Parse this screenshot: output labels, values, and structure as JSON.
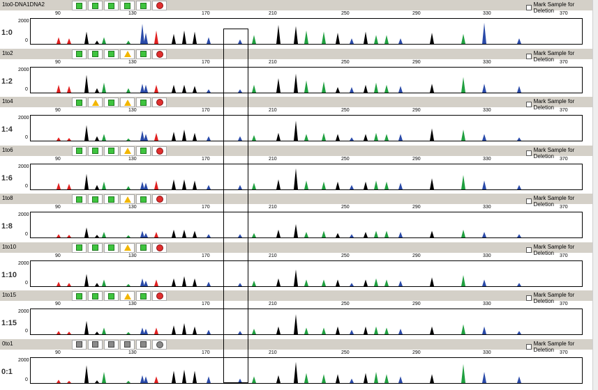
{
  "mark_label": "Mark Sample for Deletion",
  "axis": {
    "ticks": [
      "90",
      "130",
      "170",
      "210",
      "250",
      "290",
      "330",
      "370"
    ],
    "ymax": "2000",
    "ymin": "0"
  },
  "colors": {
    "header_bg": "#d4d0c8",
    "green": "#3fc43f",
    "yellow": "#f2b600",
    "red": "#e03030",
    "gray": "#8a8a8a",
    "blue": "#2a4aa8",
    "black": "#000000",
    "peak_red": "#e02020",
    "peak_green": "#20a040"
  },
  "samples": [
    {
      "name": "1to0-DNA1DNA2",
      "ratio": "1:0",
      "status": [
        "green",
        "green",
        "green",
        "green",
        "green",
        "red"
      ]
    },
    {
      "name": "1to2",
      "ratio": "1:2",
      "status": [
        "green",
        "green",
        "green",
        "yellow",
        "green",
        "red"
      ]
    },
    {
      "name": "1to4",
      "ratio": "1:4",
      "status": [
        "green",
        "yellow",
        "green",
        "yellow",
        "green",
        "red"
      ]
    },
    {
      "name": "1to6",
      "ratio": "1:6",
      "status": [
        "green",
        "green",
        "green",
        "yellow",
        "green",
        "red"
      ]
    },
    {
      "name": "1to8",
      "ratio": "1:8",
      "status": [
        "green",
        "green",
        "green",
        "yellow",
        "green",
        "red"
      ]
    },
    {
      "name": "1to10",
      "ratio": "1:10",
      "status": [
        "green",
        "green",
        "green",
        "yellow",
        "green",
        "red"
      ]
    },
    {
      "name": "1to15",
      "ratio": "1:15",
      "status": [
        "green",
        "green",
        "green",
        "yellow",
        "green",
        "red"
      ]
    },
    {
      "name": "0to1",
      "ratio": "0:1",
      "status": [
        "gray",
        "gray",
        "gray",
        "gray",
        "gray",
        "gray"
      ]
    }
  ],
  "peak_colors": [
    "red",
    "red",
    "black",
    "black",
    "green",
    "green",
    "blue",
    "blue",
    "red",
    "black",
    "black",
    "black",
    "blue",
    "blue",
    "green",
    "black",
    "black",
    "green",
    "green",
    "black",
    "blue",
    "black",
    "green",
    "green",
    "blue",
    "black",
    "green",
    "blue",
    "blue"
  ],
  "peak_heights": [
    [
      0.3,
      0.25,
      0.55,
      0.15,
      0.3,
      0.15,
      0.9,
      0.5,
      0.6,
      0.45,
      0.6,
      0.55,
      0.3,
      0.2,
      0.4,
      0.85,
      0.8,
      0.6,
      0.55,
      0.5,
      0.25,
      0.55,
      0.4,
      0.4,
      0.25,
      0.5,
      0.45,
      0.95,
      0.25
    ],
    [
      0.35,
      0.3,
      0.8,
      0.2,
      0.45,
      0.2,
      0.4,
      0.35,
      0.35,
      0.35,
      0.35,
      0.3,
      0.15,
      0.15,
      0.35,
      0.65,
      0.85,
      0.55,
      0.5,
      0.25,
      0.25,
      0.35,
      0.45,
      0.35,
      0.3,
      0.4,
      0.7,
      0.4,
      0.3
    ],
    [
      0.15,
      0.12,
      0.7,
      0.2,
      0.3,
      0.1,
      0.45,
      0.3,
      0.35,
      0.4,
      0.5,
      0.35,
      0.2,
      0.2,
      0.25,
      0.35,
      0.9,
      0.3,
      0.35,
      0.3,
      0.15,
      0.3,
      0.35,
      0.3,
      0.3,
      0.55,
      0.5,
      0.3,
      0.15
    ],
    [
      0.3,
      0.25,
      0.7,
      0.2,
      0.35,
      0.15,
      0.35,
      0.3,
      0.4,
      0.45,
      0.45,
      0.4,
      0.2,
      0.2,
      0.3,
      0.45,
      0.95,
      0.4,
      0.35,
      0.35,
      0.2,
      0.35,
      0.4,
      0.35,
      0.3,
      0.5,
      0.65,
      0.4,
      0.2
    ],
    [
      0.15,
      0.12,
      0.45,
      0.12,
      0.25,
      0.1,
      0.3,
      0.2,
      0.25,
      0.35,
      0.35,
      0.3,
      0.15,
      0.15,
      0.2,
      0.35,
      0.6,
      0.25,
      0.3,
      0.2,
      0.15,
      0.25,
      0.3,
      0.3,
      0.25,
      0.3,
      0.35,
      0.25,
      0.15
    ],
    [
      0.2,
      0.15,
      0.55,
      0.15,
      0.3,
      0.1,
      0.35,
      0.25,
      0.3,
      0.35,
      0.45,
      0.35,
      0.2,
      0.15,
      0.25,
      0.35,
      0.75,
      0.3,
      0.3,
      0.3,
      0.15,
      0.3,
      0.35,
      0.3,
      0.25,
      0.4,
      0.5,
      0.3,
      0.15
    ],
    [
      0.15,
      0.12,
      0.6,
      0.12,
      0.3,
      0.1,
      0.3,
      0.25,
      0.3,
      0.4,
      0.5,
      0.35,
      0.2,
      0.15,
      0.25,
      0.35,
      0.9,
      0.3,
      0.3,
      0.35,
      0.2,
      0.35,
      0.35,
      0.3,
      0.25,
      0.35,
      0.45,
      0.35,
      0.15
    ],
    [
      0.15,
      0.1,
      0.8,
      0.12,
      0.5,
      0.1,
      0.35,
      0.3,
      0.3,
      0.55,
      0.6,
      0.55,
      0.3,
      0.2,
      0.3,
      0.35,
      0.95,
      0.45,
      0.4,
      0.4,
      0.2,
      0.45,
      0.5,
      0.4,
      0.3,
      0.4,
      0.85,
      0.5,
      0.3
    ]
  ]
}
